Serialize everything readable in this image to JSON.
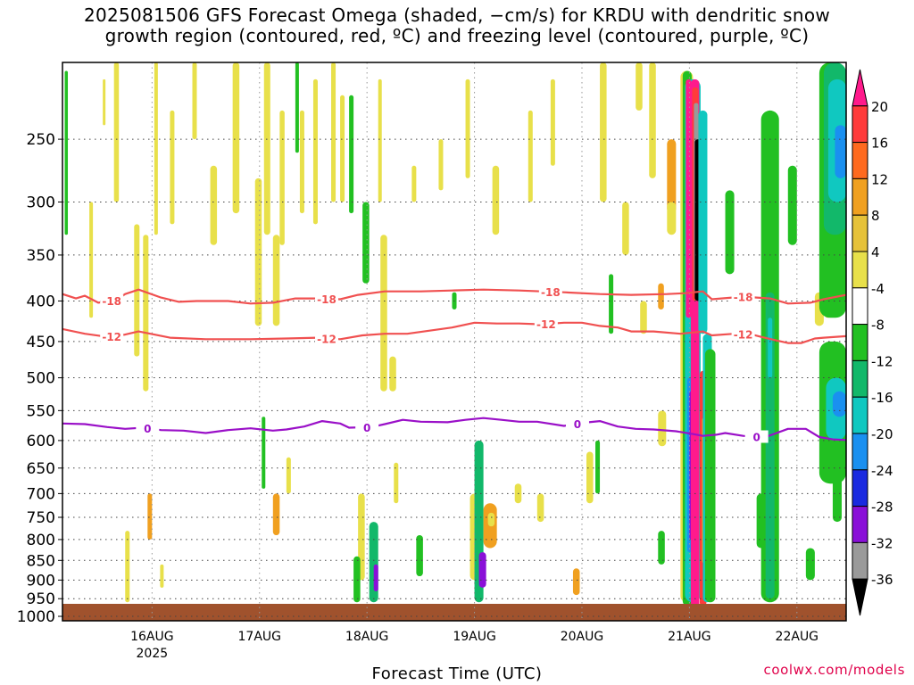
{
  "chart_data": {
    "type": "heatmap",
    "title_line1": "2025081506 GFS Forecast Omega (shaded, −cm/s) for KRDU with dendritic snow",
    "title_line2": "growth region (contoured, red, ºC) and freezing level (contoured, purple, ºC)",
    "xlabel": "Forecast Time (UTC)",
    "credit": "coolwx.com/models",
    "y_axis": {
      "scale": "pressure (hPa)",
      "ticks": [
        250,
        300,
        350,
        400,
        450,
        500,
        550,
        600,
        650,
        700,
        750,
        800,
        850,
        900,
        950,
        1000
      ],
      "top": 200,
      "bottom": 1013
    },
    "x_axis": {
      "start_hours": -2,
      "end_hours": 173,
      "ticks": [
        {
          "label": "16AUG",
          "hours": 18
        },
        {
          "label": "17AUG",
          "hours": 42
        },
        {
          "label": "18AUG",
          "hours": 66
        },
        {
          "label": "19AUG",
          "hours": 90
        },
        {
          "label": "20AUG",
          "hours": 114
        },
        {
          "label": "21AUG",
          "hours": 138
        },
        {
          "label": "22AUG",
          "hours": 162
        }
      ],
      "year_label": "2025"
    },
    "colorbar": {
      "labels": [
        "20",
        "16",
        "12",
        "8",
        "4",
        "-4",
        "-8",
        "-12",
        "-16",
        "-20",
        "-24",
        "-28",
        "-32",
        "-36"
      ],
      "colors": [
        "#ff1a8c",
        "#ff3b3b",
        "#ff6a1f",
        "#f0a020",
        "#e6c23a",
        "#e8e04a",
        "#ffffff",
        "#22c022",
        "#12b86a",
        "#10c8c0",
        "#1a90f0",
        "#1a2ae0",
        "#8a10d8",
        "#9a9a9a",
        "#000000"
      ]
    },
    "contours": [
      {
        "label": "-18",
        "color": "#f05050",
        "points": [
          [
            -2,
            392
          ],
          [
            1,
            397
          ],
          [
            3,
            394
          ],
          [
            6,
            402
          ],
          [
            10,
            399
          ],
          [
            12,
            392
          ],
          [
            15,
            387
          ],
          [
            20,
            396
          ],
          [
            24,
            401
          ],
          [
            28,
            400
          ],
          [
            35,
            400
          ],
          [
            40,
            403
          ],
          [
            45,
            402
          ],
          [
            50,
            397
          ],
          [
            55,
            397
          ],
          [
            60,
            398
          ],
          [
            64,
            393
          ],
          [
            70,
            389
          ],
          [
            78,
            389
          ],
          [
            85,
            388
          ],
          [
            92,
            387
          ],
          [
            100,
            388
          ],
          [
            110,
            390
          ],
          [
            118,
            392
          ],
          [
            125,
            393
          ],
          [
            133,
            392
          ],
          [
            137,
            391
          ],
          [
            141,
            389
          ],
          [
            143,
            398
          ],
          [
            150,
            395
          ],
          [
            156,
            397
          ],
          [
            160,
            403
          ],
          [
            165,
            402
          ],
          [
            168,
            398
          ],
          [
            173,
            393
          ]
        ],
        "label_hours": [
          9,
          57,
          107,
          150
        ]
      },
      {
        "label": "-12",
        "color": "#f05050",
        "points": [
          [
            -2,
            434
          ],
          [
            3,
            440
          ],
          [
            8,
            444
          ],
          [
            12,
            441
          ],
          [
            15,
            437
          ],
          [
            22,
            445
          ],
          [
            30,
            447
          ],
          [
            40,
            447
          ],
          [
            48,
            446
          ],
          [
            55,
            445
          ],
          [
            60,
            447
          ],
          [
            65,
            442
          ],
          [
            70,
            440
          ],
          [
            75,
            440
          ],
          [
            80,
            436
          ],
          [
            85,
            432
          ],
          [
            90,
            426
          ],
          [
            95,
            427
          ],
          [
            100,
            427
          ],
          [
            105,
            428
          ],
          [
            110,
            426
          ],
          [
            114,
            426
          ],
          [
            118,
            430
          ],
          [
            122,
            432
          ],
          [
            125,
            437
          ],
          [
            130,
            437
          ],
          [
            136,
            440
          ],
          [
            141,
            437
          ],
          [
            143,
            442
          ],
          [
            148,
            440
          ],
          [
            152,
            441
          ],
          [
            154,
            444
          ],
          [
            157,
            448
          ],
          [
            160,
            452
          ],
          [
            163,
            452
          ],
          [
            166,
            446
          ],
          [
            168,
            445
          ],
          [
            173,
            443
          ]
        ],
        "label_hours": [
          9,
          57,
          106,
          150
        ]
      },
      {
        "label": "0",
        "color": "#9a10c8",
        "points": [
          [
            -2,
            571
          ],
          [
            3,
            572
          ],
          [
            8,
            577
          ],
          [
            12,
            580
          ],
          [
            16,
            578
          ],
          [
            20,
            582
          ],
          [
            25,
            583
          ],
          [
            30,
            587
          ],
          [
            35,
            582
          ],
          [
            40,
            579
          ],
          [
            45,
            583
          ],
          [
            48,
            581
          ],
          [
            52,
            576
          ],
          [
            56,
            567
          ],
          [
            60,
            571
          ],
          [
            62,
            578
          ],
          [
            67,
            577
          ],
          [
            70,
            572
          ],
          [
            74,
            565
          ],
          [
            78,
            568
          ],
          [
            84,
            569
          ],
          [
            88,
            565
          ],
          [
            92,
            562
          ],
          [
            96,
            565
          ],
          [
            100,
            568
          ],
          [
            104,
            568
          ],
          [
            110,
            575
          ],
          [
            114,
            570
          ],
          [
            118,
            567
          ],
          [
            122,
            576
          ],
          [
            126,
            580
          ],
          [
            130,
            581
          ],
          [
            135,
            584
          ],
          [
            139,
            589
          ],
          [
            141,
            592
          ],
          [
            144,
            590
          ],
          [
            146,
            587
          ],
          [
            150,
            592
          ],
          [
            155,
            594
          ],
          [
            160,
            580
          ],
          [
            164,
            580
          ],
          [
            167,
            594
          ],
          [
            170,
            598
          ],
          [
            173,
            599
          ]
        ],
        "label_hours": [
          17,
          66,
          113,
          153
        ]
      }
    ]
  }
}
